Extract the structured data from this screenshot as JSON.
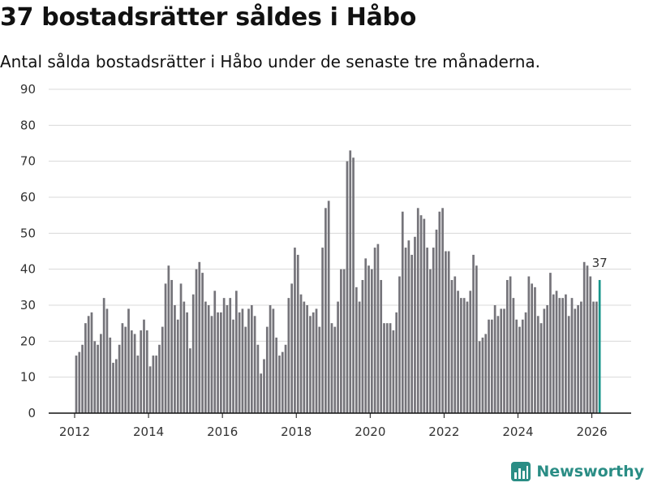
{
  "title": "37 bostadsrätter såldes i Håbo",
  "subtitle": "Antal sålda bostadsrätter i Håbo under de senaste tre månaderna.",
  "brand": "Newsworthy",
  "colors": {
    "bar": "#75747a",
    "highlight": "#17958b",
    "grid": "#d8d8d8",
    "axis": "#111111",
    "brand": "#2a8d85"
  },
  "chart_data": {
    "type": "bar",
    "title": "Antal sålda bostadsrätter i Håbo under de senaste tre månaderna.",
    "xlabel": "",
    "ylabel": "",
    "ylim": [
      0,
      90
    ],
    "y_ticks": [
      0,
      10,
      20,
      30,
      40,
      50,
      60,
      70,
      80,
      90
    ],
    "x_ticks": [
      "2012",
      "2014",
      "2016",
      "2018",
      "2020",
      "2022",
      "2024",
      "2026"
    ],
    "start": "2012-01",
    "frequency": "monthly",
    "values": [
      16,
      17,
      19,
      25,
      27,
      28,
      20,
      19,
      22,
      32,
      29,
      21,
      14,
      15,
      19,
      25,
      24,
      29,
      23,
      22,
      16,
      23,
      26,
      23,
      13,
      16,
      16,
      19,
      24,
      36,
      41,
      37,
      30,
      26,
      36,
      31,
      28,
      18,
      33,
      40,
      42,
      39,
      31,
      30,
      27,
      34,
      28,
      28,
      32,
      30,
      32,
      26,
      34,
      28,
      29,
      24,
      29,
      30,
      27,
      19,
      11,
      15,
      24,
      30,
      29,
      21,
      16,
      17,
      19,
      32,
      36,
      46,
      44,
      33,
      31,
      30,
      27,
      28,
      29,
      24,
      46,
      57,
      59,
      25,
      24,
      31,
      40,
      40,
      70,
      73,
      71,
      35,
      31,
      37,
      43,
      41,
      40,
      46,
      47,
      37,
      25,
      25,
      25,
      23,
      28,
      38,
      56,
      46,
      48,
      44,
      49,
      57,
      55,
      54,
      46,
      40,
      46,
      51,
      56,
      57,
      45,
      45,
      37,
      38,
      34,
      32,
      32,
      31,
      34,
      44,
      41,
      20,
      21,
      22,
      26,
      26,
      30,
      27,
      29,
      29,
      37,
      38,
      32,
      26,
      24,
      26,
      28,
      38,
      36,
      35,
      27,
      25,
      29,
      30,
      39,
      33,
      34,
      32,
      32,
      33,
      27,
      32,
      29,
      30,
      31,
      42,
      41,
      38,
      31,
      31,
      37
    ],
    "highlight": {
      "label": "37",
      "value": 37
    }
  }
}
